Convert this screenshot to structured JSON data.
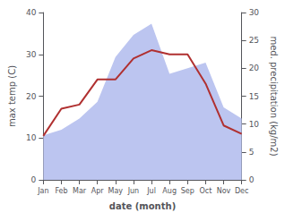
{
  "chart_data": {
    "type": "line",
    "categories": [
      "Jan",
      "Feb",
      "Mar",
      "Apr",
      "May",
      "Jun",
      "Jul",
      "Aug",
      "Sep",
      "Oct",
      "Nov",
      "Dec"
    ],
    "series": [
      {
        "type": "area",
        "axis": "y2",
        "color": "#bcc5f0",
        "values": [
          8.0,
          9.0,
          11.0,
          14.0,
          22.0,
          26.0,
          28.0,
          19.0,
          20.0,
          21.0,
          13.0,
          11.0
        ]
      },
      {
        "type": "line",
        "color": "#b03030",
        "values": [
          10.5,
          17.0,
          18.0,
          24.0,
          24.0,
          29.0,
          31.0,
          30.0,
          30.0,
          23.0,
          13.0,
          11.0
        ]
      }
    ],
    "xlabel": "date (month)",
    "ylabel": "max temp (C)",
    "y2label": "med. precipitation (kg/m2)",
    "ylim": [
      0,
      40
    ],
    "yticks": [
      0,
      10,
      20,
      30,
      40
    ],
    "y2lim": [
      0,
      30
    ],
    "y2ticks": [
      0,
      5,
      10,
      15,
      20,
      25,
      30
    ],
    "grid": false
  }
}
